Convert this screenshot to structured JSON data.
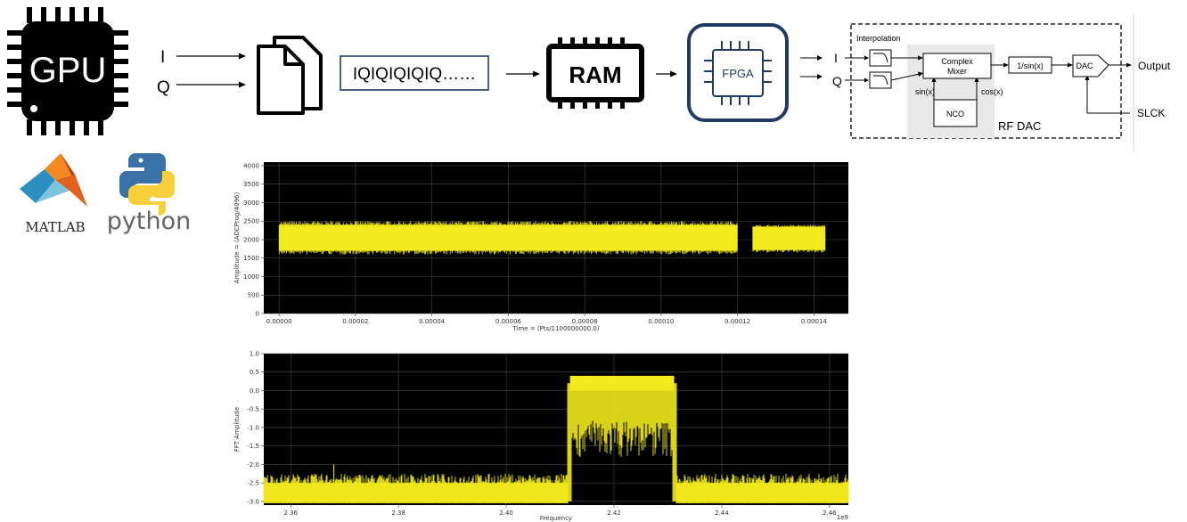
{
  "gpu": {
    "label": "GPU"
  },
  "io_in": {
    "i": "I",
    "q": "Q"
  },
  "stream": {
    "text": "IQIQIQIQIQ……"
  },
  "ram": {
    "label": "RAM"
  },
  "fpga": {
    "label": "FPGA"
  },
  "dac_in": {
    "i": "I",
    "q": "Q"
  },
  "rfdac": {
    "interpolation": "Interpolation",
    "mixer": "Complex\nMixer",
    "sinx": "sin(x)",
    "cosx": "cos(x)",
    "nco": "NCO",
    "inv_sinc": "1/sin(x)",
    "dac": "DAC",
    "title": "RF DAC",
    "output": "Output",
    "slck": "SLCK"
  },
  "logos": {
    "matlab": "MATLAB",
    "python": "python"
  },
  "colors": {
    "signal": "#f2ea1d",
    "fpga_border": "#1f3b63",
    "python_blue": "#3a72a8",
    "python_yellow": "#f6cf3a"
  },
  "chart_data": [
    {
      "type": "line",
      "title": "",
      "xlabel": "Time = (Pts/1100000000.0)",
      "ylabel": "Amplitude = (ADCProg/4096)",
      "xlim": [
        -4e-06,
        0.000149
      ],
      "ylim": [
        0,
        4096
      ],
      "xticks": [
        0.0,
        2e-05,
        4e-05,
        6e-05,
        8e-05,
        0.0001,
        0.00012,
        0.00014
      ],
      "xtick_labels": [
        "0.00000",
        "0.00002",
        "0.00004",
        "0.00006",
        "0.00008",
        "0.00010",
        "0.00012",
        "0.00014"
      ],
      "yticks": [
        0,
        500,
        1000,
        1500,
        2000,
        2500,
        3000,
        3500,
        4000
      ],
      "ytick_labels": [
        "0",
        "500",
        "1000",
        "1500",
        "2000",
        "2500",
        "3000",
        "3500",
        "4000"
      ],
      "grid": true,
      "segments": [
        {
          "x_start": 0.0,
          "x_end": 0.00012,
          "center": 2048,
          "envelope_low": 1700,
          "envelope_high": 2400,
          "peak_low": 1600,
          "peak_high": 2500
        },
        {
          "x_start": 0.000124,
          "x_end": 0.000143,
          "center": 2048,
          "envelope_low": 1720,
          "envelope_high": 2350,
          "peak_low": 1650,
          "peak_high": 2400
        }
      ]
    },
    {
      "type": "line",
      "title": "",
      "xlabel": "Frequency",
      "ylabel": "FFT Amplitude",
      "x_offset_label": "1e9",
      "xlim": [
        2.355,
        2.4635
      ],
      "ylim": [
        -3.1,
        1.0
      ],
      "xticks": [
        2.36,
        2.38,
        2.4,
        2.42,
        2.44,
        2.46
      ],
      "xtick_labels": [
        "2.36",
        "2.38",
        "2.40",
        "2.42",
        "2.44",
        "2.46"
      ],
      "yticks": [
        -3.0,
        -2.5,
        -2.0,
        -1.5,
        -1.0,
        -0.5,
        0.0,
        0.5,
        1.0
      ],
      "ytick_labels": [
        "-3.0",
        "-2.5",
        "-2.0",
        "-1.5",
        "-1.0",
        "-0.5",
        "0.0",
        "0.5",
        "1.0"
      ],
      "grid": true,
      "noise_floor": {
        "low": -3.0,
        "high": -2.55
      },
      "band": {
        "x_start": 2.4115,
        "x_end": 2.4315,
        "top_low": 0.2,
        "top_high": 0.4,
        "inner_dip": -1.3
      },
      "spur": {
        "x": 2.368,
        "y": -2.0
      }
    }
  ]
}
